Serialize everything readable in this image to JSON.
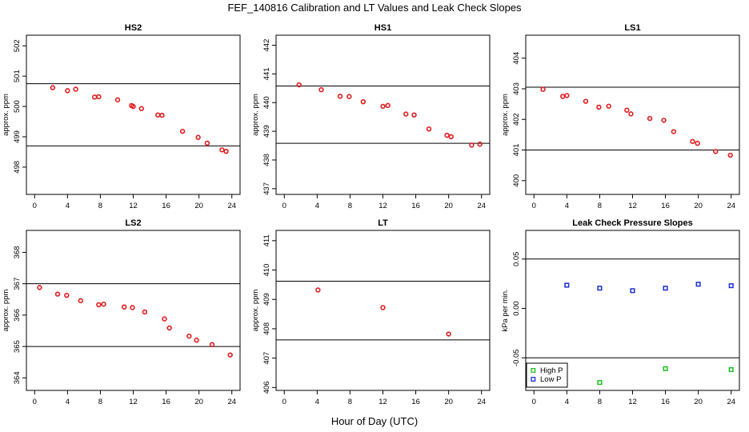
{
  "figure": {
    "title": "FEF_140816  Calibration and LT Values and Leak Check Slopes",
    "xlabel": "Hour of Day (UTC)"
  },
  "chart_data": [
    {
      "type": "scatter",
      "title": "HS2",
      "ylabel": "approx. ppm",
      "xlim": [
        -1,
        25
      ],
      "ylim": [
        497.1,
        502.35
      ],
      "xticks": [
        0,
        4,
        8,
        12,
        16,
        20,
        24
      ],
      "yticks": [
        498,
        499,
        500,
        501,
        502
      ],
      "hlines": [
        500.75,
        498.7
      ],
      "series": [
        {
          "color": "#e31a1c",
          "marker": "circle",
          "x": [
            2.2,
            4,
            5,
            7.3,
            7.8,
            10.1,
            11.8,
            12,
            13,
            15,
            15.5,
            18,
            19.9,
            21,
            22.8,
            23.3
          ],
          "y": [
            500.62,
            500.52,
            500.57,
            500.31,
            500.32,
            500.22,
            500.03,
            500.0,
            499.93,
            499.72,
            499.71,
            499.18,
            498.98,
            498.79,
            498.57,
            498.52
          ]
        }
      ]
    },
    {
      "type": "scatter",
      "title": "HS1",
      "ylabel": "approx. ppm",
      "xlim": [
        -1,
        25
      ],
      "ylim": [
        436.8,
        442.35
      ],
      "xticks": [
        0,
        4,
        8,
        12,
        16,
        20,
        24
      ],
      "yticks": [
        437,
        438,
        439,
        440,
        441,
        442
      ],
      "hlines": [
        440.58,
        438.58
      ],
      "series": [
        {
          "color": "#e31a1c",
          "marker": "circle",
          "x": [
            1.8,
            4.5,
            6.8,
            7.9,
            9.6,
            12,
            12.6,
            14.8,
            15.8,
            17.6,
            19.8,
            20.3,
            22.8,
            23.8
          ],
          "y": [
            440.62,
            440.45,
            440.22,
            440.21,
            440.03,
            439.87,
            439.9,
            439.6,
            439.57,
            439.08,
            438.86,
            438.81,
            438.52,
            438.55
          ]
        }
      ]
    },
    {
      "type": "scatter",
      "title": "LS1",
      "ylabel": "approx. ppm",
      "xlim": [
        -1,
        25
      ],
      "ylim": [
        399.55,
        404.75
      ],
      "xticks": [
        0,
        4,
        8,
        12,
        16,
        20,
        24
      ],
      "yticks": [
        400,
        401,
        402,
        403,
        404
      ],
      "hlines": [
        403.05,
        401.0
      ],
      "series": [
        {
          "color": "#e31a1c",
          "marker": "circle",
          "x": [
            1.1,
            3.5,
            4,
            6.3,
            7.9,
            9.1,
            11.3,
            11.8,
            14.1,
            15.8,
            17,
            19.3,
            19.9,
            22.1,
            23.9
          ],
          "y": [
            402.98,
            402.75,
            402.78,
            402.59,
            402.4,
            402.43,
            402.3,
            402.18,
            402.03,
            401.97,
            401.6,
            401.28,
            401.22,
            400.95,
            400.83
          ]
        }
      ]
    },
    {
      "type": "scatter",
      "title": "LS2",
      "ylabel": "approx. ppm",
      "xlim": [
        -1,
        25
      ],
      "ylim": [
        363.6,
        368.7
      ],
      "xticks": [
        0,
        4,
        8,
        12,
        16,
        20,
        24
      ],
      "yticks": [
        364,
        365,
        366,
        367,
        368
      ],
      "hlines": [
        367.0,
        365.0
      ],
      "series": [
        {
          "color": "#e31a1c",
          "marker": "circle",
          "x": [
            0.6,
            2.8,
            3.9,
            5.6,
            7.8,
            8.4,
            10.9,
            11.9,
            13.4,
            15.8,
            16.4,
            18.8,
            19.7,
            21.6,
            23.8
          ],
          "y": [
            366.88,
            366.67,
            366.63,
            366.46,
            366.33,
            366.35,
            366.26,
            366.24,
            366.1,
            365.88,
            365.59,
            365.33,
            365.2,
            365.06,
            364.73
          ]
        }
      ]
    },
    {
      "type": "scatter",
      "title": "LT",
      "ylabel": "approx. ppm",
      "xlim": [
        -1,
        25
      ],
      "ylim": [
        405.9,
        411.35
      ],
      "xticks": [
        0,
        4,
        8,
        12,
        16,
        20,
        24
      ],
      "yticks": [
        406,
        407,
        408,
        409,
        410,
        411
      ],
      "hlines": [
        409.62,
        407.62
      ],
      "series": [
        {
          "color": "#e31a1c",
          "marker": "circle",
          "x": [
            4.1,
            12,
            20
          ],
          "y": [
            409.32,
            408.72,
            407.82
          ]
        }
      ]
    },
    {
      "type": "scatter",
      "title": "Leak Check Pressure Slopes",
      "ylabel": "kPa per min.",
      "xlim": [
        -1,
        25
      ],
      "ylim": [
        -0.083,
        0.079
      ],
      "xticks": [
        0,
        4,
        8,
        12,
        16,
        20,
        24
      ],
      "yticks": [
        -0.05,
        0.0,
        0.05
      ],
      "ytick_labels": [
        "-0.05",
        "0.00",
        "0.05"
      ],
      "hlines": [
        0.05,
        -0.05
      ],
      "legend": {
        "placement": "bottom-left"
      },
      "series": [
        {
          "name": "High P",
          "color": "#1fbf1f",
          "marker": "square",
          "x": [
            8,
            16,
            24
          ],
          "y": [
            -0.075,
            -0.061,
            -0.062
          ]
        },
        {
          "name": "Low P",
          "color": "#1c2fd6",
          "marker": "square",
          "x": [
            4,
            8,
            12,
            16,
            20,
            24
          ],
          "y": [
            0.0235,
            0.0205,
            0.018,
            0.0205,
            0.0245,
            0.023
          ]
        }
      ]
    }
  ]
}
